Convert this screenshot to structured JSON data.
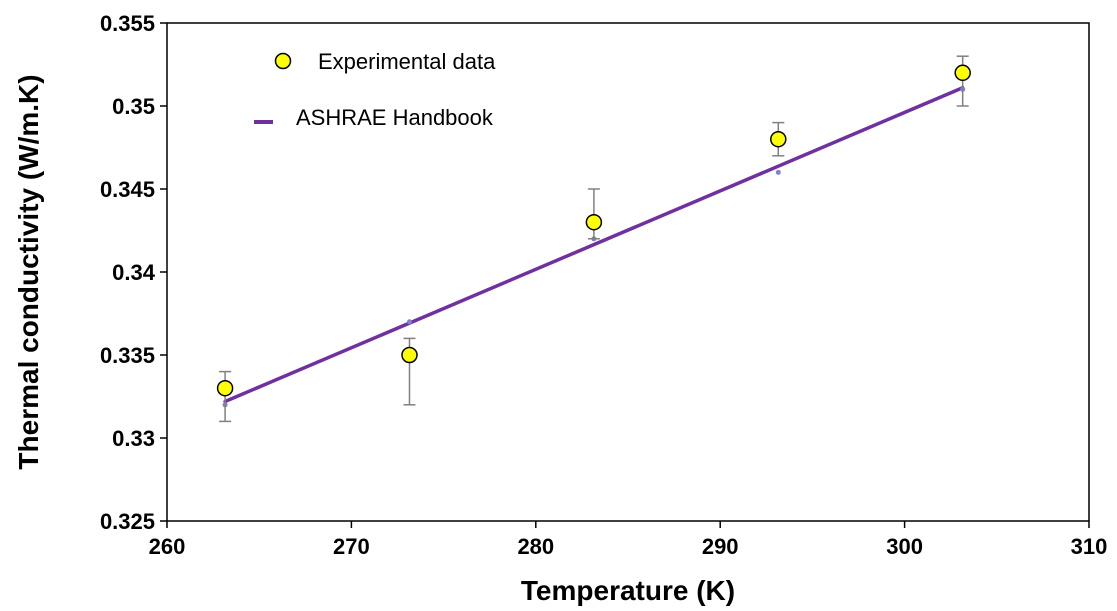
{
  "chart_data": {
    "type": "scatter",
    "xlabel": "Temperature (K)",
    "ylabel": "Thermal conductivity (W/m.K)",
    "xlim": [
      260,
      310
    ],
    "ylim": [
      0.325,
      0.355
    ],
    "x_ticks": [
      260,
      270,
      280,
      290,
      300,
      310
    ],
    "x_tick_labels": [
      "260",
      "270",
      "280",
      "290",
      "300",
      "310"
    ],
    "y_ticks": [
      0.325,
      0.33,
      0.335,
      0.34,
      0.345,
      0.35,
      0.355
    ],
    "y_tick_labels": [
      "0.325",
      "0.33",
      "0.335",
      "0.34",
      "0.345",
      "0.35",
      "0.355"
    ],
    "grid": false,
    "legend_position": "top-left",
    "series": [
      {
        "name": "Experimental data",
        "kind": "points-with-error-bars",
        "color": "#FFFF00",
        "edge_color": "#000000",
        "x": [
          263.15,
          273.15,
          283.15,
          293.15,
          303.15
        ],
        "y": [
          0.333,
          0.335,
          0.343,
          0.348,
          0.352
        ],
        "y_err_low": [
          0.331,
          0.332,
          0.342,
          0.347,
          0.35
        ],
        "y_err_high": [
          0.334,
          0.336,
          0.345,
          0.349,
          0.353
        ]
      },
      {
        "name": "ASHRAE Handbook",
        "kind": "line",
        "color": "#7030A0",
        "marker_color": "#8080D0",
        "x": [
          263.15,
          273.15,
          283.15,
          293.15,
          303.15
        ],
        "y": [
          0.332,
          0.337,
          0.342,
          0.346,
          0.351
        ],
        "fit_line": {
          "x": [
            263.15,
            303.15
          ],
          "y": [
            0.3322,
            0.3511
          ]
        }
      }
    ]
  }
}
